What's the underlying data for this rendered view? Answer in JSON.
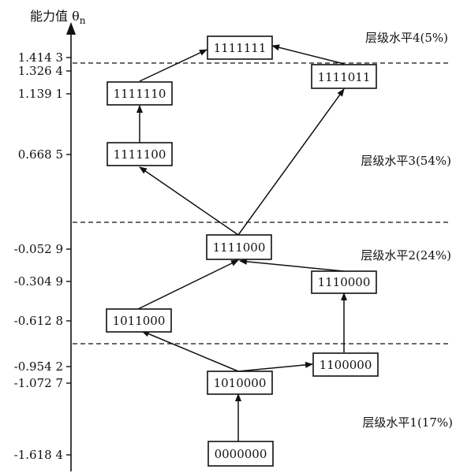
{
  "axis": {
    "title": "能力值 θ",
    "title_subscript": "n",
    "ticks": [
      "1.414 3",
      "1.326 4",
      "1.139 1",
      "0.668 5",
      "-0.052 9",
      "-0.304 9",
      "-0.612 8",
      "-0.954 2",
      "-1.072 7",
      "-1.618 4"
    ]
  },
  "levels": [
    {
      "label": "层级水平4(5%)"
    },
    {
      "label": "层级水平3(54%)"
    },
    {
      "label": "层级水平2(24%)"
    },
    {
      "label": "层级水平1(17%)"
    }
  ],
  "nodes": [
    {
      "id": "n1111111",
      "label": "1111111"
    },
    {
      "id": "n1111110",
      "label": "1111110"
    },
    {
      "id": "n1111011",
      "label": "1111011"
    },
    {
      "id": "n1111100",
      "label": "1111100"
    },
    {
      "id": "n1111000",
      "label": "1111000"
    },
    {
      "id": "n1110000",
      "label": "1110000"
    },
    {
      "id": "n1011000",
      "label": "1011000"
    },
    {
      "id": "n1100000",
      "label": "1100000"
    },
    {
      "id": "n1010000",
      "label": "1010000"
    },
    {
      "id": "n0000000",
      "label": "0000000"
    }
  ],
  "edges": [
    {
      "from": "0000000",
      "to": "1010000"
    },
    {
      "from": "1010000",
      "to": "1011000"
    },
    {
      "from": "1010000",
      "to": "1100000"
    },
    {
      "from": "1100000",
      "to": "1110000"
    },
    {
      "from": "1011000",
      "to": "1111000"
    },
    {
      "from": "1110000",
      "to": "1111000"
    },
    {
      "from": "1111000",
      "to": "1111100"
    },
    {
      "from": "1111000",
      "to": "1111011"
    },
    {
      "from": "1111100",
      "to": "1111110"
    },
    {
      "from": "1111110",
      "to": "1111111"
    },
    {
      "from": "1111011",
      "to": "1111111"
    }
  ]
}
